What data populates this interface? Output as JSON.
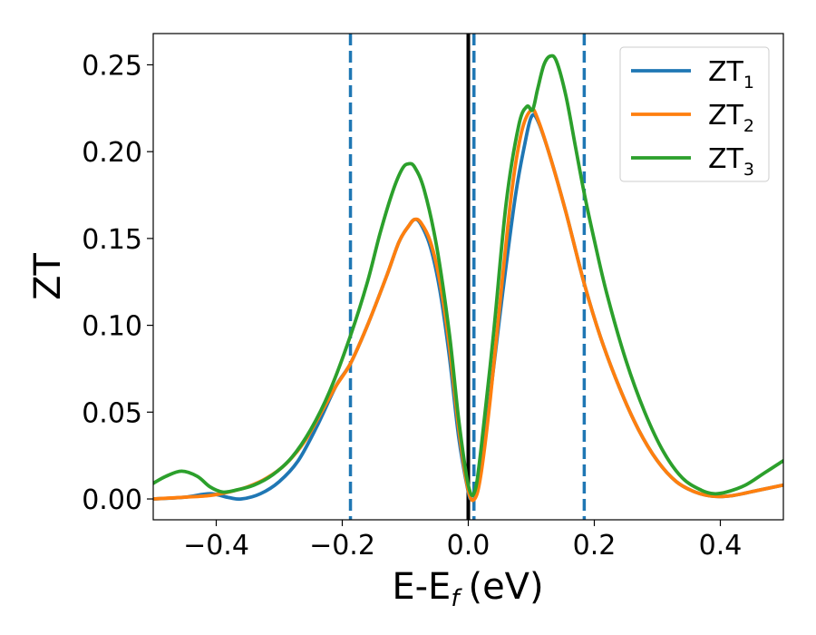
{
  "chart_data": {
    "type": "line",
    "title": "",
    "xlabel": {
      "main": "E-E",
      "sub": "f",
      "unit": "(eV)"
    },
    "ylabel": "ZT",
    "xlim": [
      -0.5,
      0.5
    ],
    "ylim": [
      -0.012,
      0.268
    ],
    "x_ticks": [
      -0.4,
      -0.2,
      0.0,
      0.2,
      0.4
    ],
    "x_tick_labels": [
      "−0.4",
      "−0.2",
      "0.0",
      "0.2",
      "0.4"
    ],
    "y_ticks": [
      0.0,
      0.05,
      0.1,
      0.15,
      0.2,
      0.25
    ],
    "y_tick_labels": [
      "0.00",
      "0.05",
      "0.10",
      "0.15",
      "0.20",
      "0.25"
    ],
    "grid": false,
    "legend_position": "top-right",
    "vertical_lines": [
      {
        "x": 0.0,
        "style": "solid",
        "color": "#000000"
      },
      {
        "x": -0.187,
        "style": "dashed",
        "color": "#1f77b4"
      },
      {
        "x": 0.009,
        "style": "dashed",
        "color": "#1f77b4"
      },
      {
        "x": 0.184,
        "style": "dashed",
        "color": "#1f77b4"
      }
    ],
    "series": [
      {
        "name": "ZT",
        "sub": "1",
        "color": "#1f77b4",
        "points": [
          [
            -0.5,
            0.0
          ],
          [
            -0.45,
            0.001
          ],
          [
            -0.41,
            0.003
          ],
          [
            -0.38,
            0.0008
          ],
          [
            -0.36,
            0.0
          ],
          [
            -0.33,
            0.003
          ],
          [
            -0.3,
            0.01
          ],
          [
            -0.27,
            0.022
          ],
          [
            -0.24,
            0.042
          ],
          [
            -0.21,
            0.065
          ],
          [
            -0.187,
            0.078
          ],
          [
            -0.16,
            0.1
          ],
          [
            -0.13,
            0.128
          ],
          [
            -0.11,
            0.148
          ],
          [
            -0.095,
            0.157
          ],
          [
            -0.085,
            0.161
          ],
          [
            -0.075,
            0.158
          ],
          [
            -0.06,
            0.145
          ],
          [
            -0.045,
            0.12
          ],
          [
            -0.03,
            0.082
          ],
          [
            -0.015,
            0.035
          ],
          [
            0.0,
            0.004
          ],
          [
            0.005,
            0.0
          ],
          [
            0.01,
            0.0005
          ],
          [
            0.02,
            0.015
          ],
          [
            0.035,
            0.06
          ],
          [
            0.055,
            0.12
          ],
          [
            0.075,
            0.175
          ],
          [
            0.09,
            0.205
          ],
          [
            0.1,
            0.22
          ],
          [
            0.11,
            0.218
          ],
          [
            0.13,
            0.197
          ],
          [
            0.155,
            0.165
          ],
          [
            0.184,
            0.124
          ],
          [
            0.21,
            0.093
          ],
          [
            0.24,
            0.064
          ],
          [
            0.27,
            0.04
          ],
          [
            0.3,
            0.022
          ],
          [
            0.33,
            0.01
          ],
          [
            0.36,
            0.004
          ],
          [
            0.39,
            0.0015
          ],
          [
            0.42,
            0.002
          ],
          [
            0.46,
            0.005
          ],
          [
            0.5,
            0.008
          ]
        ]
      },
      {
        "name": "ZT",
        "sub": "2",
        "color": "#ff7f0e",
        "points": [
          [
            -0.5,
            0.0
          ],
          [
            -0.45,
            0.001
          ],
          [
            -0.41,
            0.002
          ],
          [
            -0.38,
            0.004
          ],
          [
            -0.35,
            0.007
          ],
          [
            -0.32,
            0.012
          ],
          [
            -0.29,
            0.02
          ],
          [
            -0.26,
            0.033
          ],
          [
            -0.23,
            0.052
          ],
          [
            -0.21,
            0.065
          ],
          [
            -0.187,
            0.078
          ],
          [
            -0.16,
            0.1
          ],
          [
            -0.13,
            0.128
          ],
          [
            -0.11,
            0.148
          ],
          [
            -0.095,
            0.157
          ],
          [
            -0.085,
            0.161
          ],
          [
            -0.075,
            0.159
          ],
          [
            -0.06,
            0.148
          ],
          [
            -0.045,
            0.125
          ],
          [
            -0.03,
            0.088
          ],
          [
            -0.015,
            0.04
          ],
          [
            0.0,
            0.005
          ],
          [
            0.01,
            0.0
          ],
          [
            0.02,
            0.014
          ],
          [
            0.035,
            0.058
          ],
          [
            0.055,
            0.13
          ],
          [
            0.07,
            0.18
          ],
          [
            0.085,
            0.212
          ],
          [
            0.1,
            0.224
          ],
          [
            0.11,
            0.219
          ],
          [
            0.13,
            0.197
          ],
          [
            0.155,
            0.165
          ],
          [
            0.184,
            0.124
          ],
          [
            0.21,
            0.093
          ],
          [
            0.24,
            0.064
          ],
          [
            0.27,
            0.04
          ],
          [
            0.3,
            0.022
          ],
          [
            0.33,
            0.01
          ],
          [
            0.36,
            0.004
          ],
          [
            0.39,
            0.0015
          ],
          [
            0.42,
            0.002
          ],
          [
            0.46,
            0.005
          ],
          [
            0.5,
            0.008
          ]
        ]
      },
      {
        "name": "ZT",
        "sub": "3",
        "color": "#2ca02c",
        "points": [
          [
            -0.5,
            0.009
          ],
          [
            -0.48,
            0.013
          ],
          [
            -0.455,
            0.016
          ],
          [
            -0.43,
            0.013
          ],
          [
            -0.41,
            0.007
          ],
          [
            -0.39,
            0.004
          ],
          [
            -0.37,
            0.005
          ],
          [
            -0.34,
            0.008
          ],
          [
            -0.31,
            0.014
          ],
          [
            -0.28,
            0.024
          ],
          [
            -0.25,
            0.04
          ],
          [
            -0.22,
            0.062
          ],
          [
            -0.187,
            0.094
          ],
          [
            -0.16,
            0.125
          ],
          [
            -0.14,
            0.153
          ],
          [
            -0.12,
            0.177
          ],
          [
            -0.105,
            0.19
          ],
          [
            -0.095,
            0.193
          ],
          [
            -0.085,
            0.191
          ],
          [
            -0.07,
            0.178
          ],
          [
            -0.05,
            0.145
          ],
          [
            -0.03,
            0.095
          ],
          [
            -0.015,
            0.045
          ],
          [
            0.0,
            0.008
          ],
          [
            0.01,
            0.004
          ],
          [
            0.02,
            0.028
          ],
          [
            0.04,
            0.095
          ],
          [
            0.06,
            0.17
          ],
          [
            0.08,
            0.215
          ],
          [
            0.093,
            0.226
          ],
          [
            0.102,
            0.224
          ],
          [
            0.11,
            0.236
          ],
          [
            0.12,
            0.25
          ],
          [
            0.13,
            0.255
          ],
          [
            0.14,
            0.252
          ],
          [
            0.155,
            0.232
          ],
          [
            0.17,
            0.203
          ],
          [
            0.184,
            0.176
          ],
          [
            0.2,
            0.149
          ],
          [
            0.22,
            0.118
          ],
          [
            0.25,
            0.08
          ],
          [
            0.28,
            0.05
          ],
          [
            0.31,
            0.027
          ],
          [
            0.34,
            0.012
          ],
          [
            0.37,
            0.005
          ],
          [
            0.39,
            0.003
          ],
          [
            0.41,
            0.004
          ],
          [
            0.44,
            0.008
          ],
          [
            0.47,
            0.015
          ],
          [
            0.5,
            0.022
          ]
        ]
      }
    ]
  }
}
